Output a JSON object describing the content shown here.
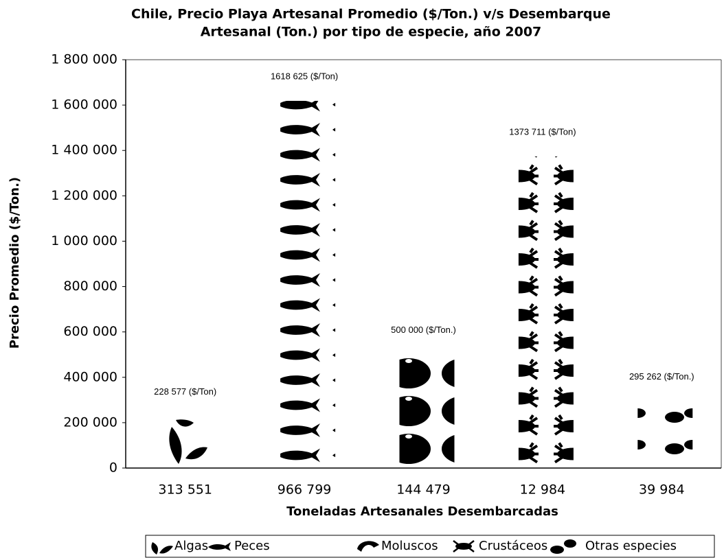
{
  "chart_data": {
    "type": "bar",
    "title": [
      "Chile, Precio Playa Artesanal Promedio ($/Ton.) v/s Desembarque",
      "Artesanal (Ton.) por tipo de especie, año 2007"
    ],
    "y_label": "Precio Promedio ($/Ton.)",
    "x_label": "Toneladas Artesanales Desembarcadas",
    "categories": [
      "313 551",
      "966 799",
      "144 479",
      "12 984",
      "39 984"
    ],
    "values": [
      228577,
      1618625,
      500000,
      1373711,
      295262
    ],
    "value_labels": [
      "228 577 ($/Ton)",
      "1618 625 ($/Ton)",
      "500 000 ($/Ton.)",
      "1373 711 ($/Ton)",
      "295 262 ($/Ton.)"
    ],
    "legend": [
      "Algas",
      "Peces",
      "Moluscos",
      "Crustáceos",
      "Otras especies"
    ],
    "color": "#000000",
    "ylim": [
      0,
      1800000
    ],
    "yticks": [
      0,
      {
        "value": 200000,
        "label": "200 000"
      },
      {
        "value": 400000,
        "label": "400 000"
      },
      {
        "value": 600000,
        "label": "600 000"
      },
      {
        "value": 800000,
        "label": "800 000"
      },
      {
        "value": 1000000,
        "label": "1 000 000"
      },
      {
        "value": 1200000,
        "label": "1 200 000"
      },
      {
        "value": 1400000,
        "label": "1 400 000"
      },
      {
        "value": 1600000,
        "label": "1 600 000"
      },
      {
        "value": 1800000,
        "label": "1 800 000"
      }
    ],
    "grid": false
  }
}
